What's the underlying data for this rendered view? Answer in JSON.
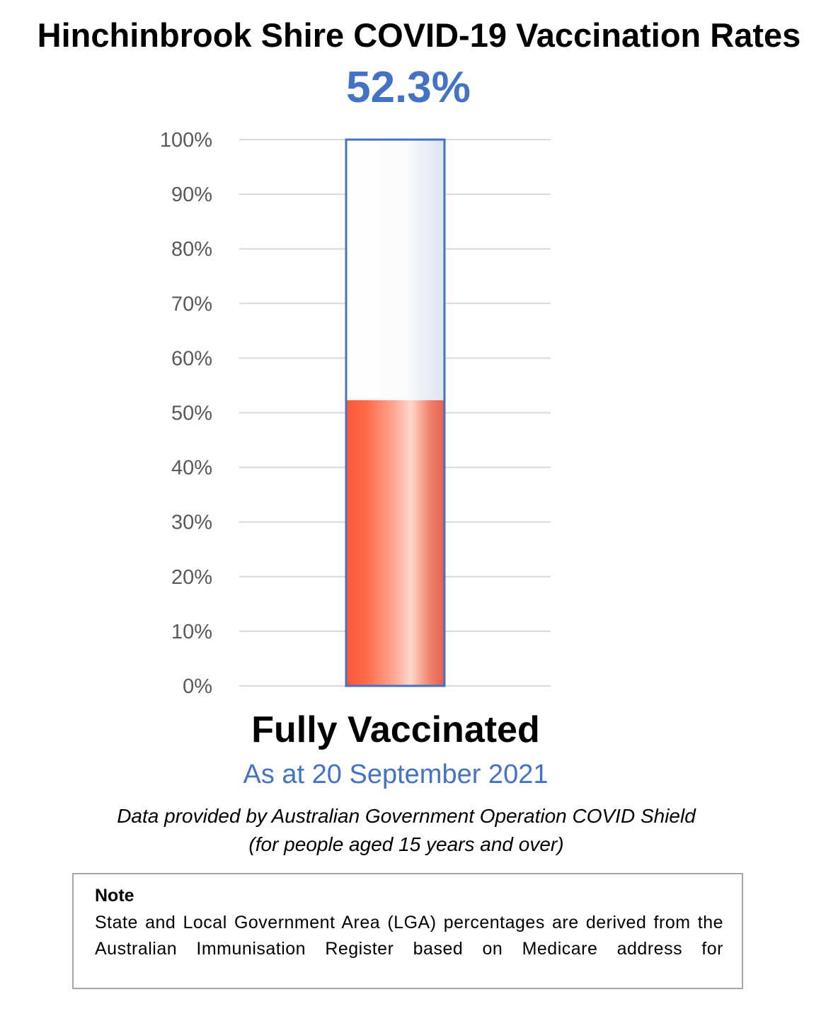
{
  "header": {
    "title": "Hinchinbrook Shire COVID-19 Vaccination Rates",
    "headline_value": "52.3%"
  },
  "chart_data": {
    "type": "bar",
    "categories": [
      "Fully Vaccinated"
    ],
    "values": [
      52.3
    ],
    "ylim": [
      0,
      100
    ],
    "yticks": [
      "0%",
      "10%",
      "20%",
      "30%",
      "40%",
      "50%",
      "60%",
      "70%",
      "80%",
      "90%",
      "100%"
    ],
    "grid": true,
    "colors": {
      "fill": "#ff5733",
      "outline": "#4472c4",
      "grid": "#d9d9d9",
      "tick_text": "#595959"
    }
  },
  "footer": {
    "category_label": "Fully Vaccinated",
    "as_at": "As at 20 September 2021",
    "source_line_1": "Data provided by Australian Government Operation COVID Shield",
    "source_line_2": "(for people aged 15 years and over)"
  },
  "note": {
    "heading": "Note",
    "text": "State and Local Government Area (LGA) percentages are derived from the Australian Immunisation Register based on Medicare address for"
  }
}
